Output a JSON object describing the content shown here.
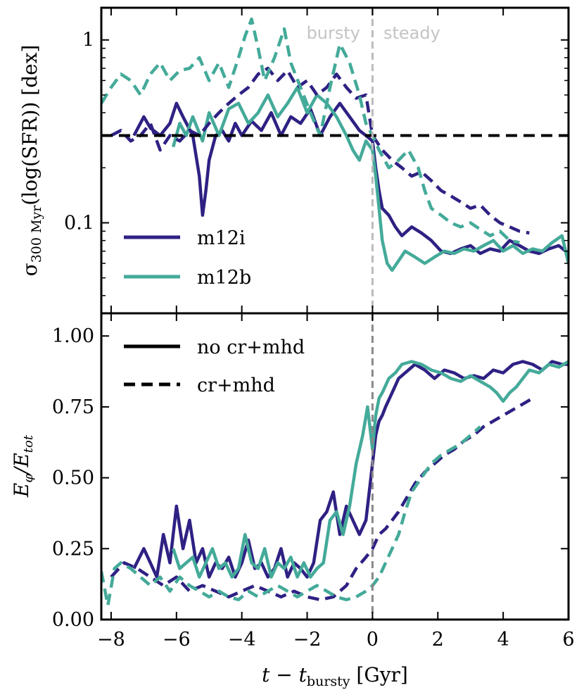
{
  "chart_data": [
    {
      "type": "line",
      "panel": "top",
      "yscale": "log",
      "ylabel_main": "σ",
      "ylabel_sub": "300 Myr",
      "ylabel_rest": "(log(SFR)) [dex]",
      "xlim": [
        -8.3,
        6
      ],
      "ylim": [
        0.032,
        1.5
      ],
      "yticks": [
        {
          "value": 0.1,
          "label": "0.1"
        },
        {
          "value": 1,
          "label": "1"
        }
      ],
      "region_labels": {
        "left": "bursty",
        "right": "steady"
      },
      "threshold": 0.3,
      "legend": [
        {
          "name": "m12i",
          "color": "#2e2183"
        },
        {
          "name": "m12b",
          "color": "#44aa99"
        }
      ],
      "series": [
        {
          "name": "m12i",
          "style": "solid",
          "color": "#2e2183",
          "x": [
            -7.3,
            -7.0,
            -6.8,
            -6.5,
            -6.2,
            -6.0,
            -5.8,
            -5.5,
            -5.3,
            -5.2,
            -5.1,
            -5.0,
            -4.8,
            -4.6,
            -4.4,
            -4.2,
            -4.0,
            -3.7,
            -3.4,
            -3.1,
            -2.8,
            -2.5,
            -2.2,
            -1.9,
            -1.6,
            -1.3,
            -1.0,
            -0.7,
            -0.4,
            -0.2,
            0.0,
            0.1,
            0.2,
            0.3,
            0.5,
            0.7,
            0.9,
            1.2,
            1.5,
            1.8,
            2.1,
            2.4,
            2.7,
            3.0,
            3.3,
            3.6,
            3.9,
            4.2,
            4.5,
            4.8,
            5.1,
            5.4,
            5.7,
            6.0
          ],
          "y": [
            0.3,
            0.38,
            0.33,
            0.3,
            0.35,
            0.45,
            0.38,
            0.3,
            0.18,
            0.11,
            0.15,
            0.22,
            0.3,
            0.32,
            0.28,
            0.35,
            0.3,
            0.36,
            0.32,
            0.4,
            0.3,
            0.38,
            0.35,
            0.42,
            0.3,
            0.38,
            0.45,
            0.38,
            0.32,
            0.3,
            0.28,
            0.2,
            0.15,
            0.12,
            0.11,
            0.095,
            0.085,
            0.095,
            0.088,
            0.08,
            0.07,
            0.068,
            0.072,
            0.075,
            0.068,
            0.072,
            0.07,
            0.08,
            0.075,
            0.07,
            0.068,
            0.072,
            0.075,
            0.068
          ]
        },
        {
          "name": "m12b",
          "style": "solid",
          "color": "#44aa99",
          "x": [
            -6.1,
            -5.9,
            -5.7,
            -5.5,
            -5.2,
            -5.0,
            -4.7,
            -4.4,
            -4.1,
            -3.8,
            -3.5,
            -3.2,
            -2.9,
            -2.6,
            -2.3,
            -2.0,
            -1.7,
            -1.4,
            -1.1,
            -0.8,
            -0.6,
            -0.4,
            -0.2,
            0.0,
            0.1,
            0.2,
            0.3,
            0.45,
            0.6,
            0.8,
            1.0,
            1.3,
            1.6,
            1.9,
            2.2,
            2.5,
            2.8,
            3.1,
            3.4,
            3.7,
            4.0,
            4.3,
            4.6,
            4.9,
            5.2,
            5.5,
            5.8,
            6.0
          ],
          "y": [
            0.26,
            0.35,
            0.3,
            0.38,
            0.28,
            0.4,
            0.3,
            0.42,
            0.45,
            0.35,
            0.4,
            0.5,
            0.38,
            0.45,
            0.55,
            0.4,
            0.5,
            0.45,
            0.38,
            0.3,
            0.25,
            0.22,
            0.28,
            0.25,
            0.18,
            0.12,
            0.08,
            0.06,
            0.055,
            0.062,
            0.07,
            0.065,
            0.06,
            0.065,
            0.07,
            0.068,
            0.072,
            0.07,
            0.075,
            0.08,
            0.07,
            0.075,
            0.068,
            0.072,
            0.07,
            0.078,
            0.085,
            0.06
          ]
        },
        {
          "name": "m12i",
          "style": "dashed",
          "color": "#2e2183",
          "x": [
            -8.0,
            -7.7,
            -7.4,
            -7.1,
            -6.8,
            -6.5,
            -6.2,
            -5.9,
            -5.6,
            -5.3,
            -5.0,
            -4.7,
            -4.4,
            -4.1,
            -3.8,
            -3.5,
            -3.2,
            -2.9,
            -2.6,
            -2.3,
            -2.0,
            -1.7,
            -1.4,
            -1.1,
            -0.8,
            -0.5,
            -0.2,
            0.0,
            0.3,
            0.6,
            0.9,
            1.2,
            1.5,
            1.8,
            2.1,
            2.4,
            2.7,
            3.0,
            3.3,
            3.6,
            3.9,
            4.2,
            4.5,
            4.8
          ],
          "y": [
            0.3,
            0.32,
            0.28,
            0.3,
            0.35,
            0.25,
            0.3,
            0.28,
            0.32,
            0.3,
            0.35,
            0.4,
            0.45,
            0.5,
            0.55,
            0.65,
            0.7,
            0.6,
            0.68,
            0.55,
            0.6,
            0.5,
            0.55,
            0.65,
            0.55,
            0.48,
            0.5,
            0.3,
            0.25,
            0.22,
            0.2,
            0.18,
            0.19,
            0.17,
            0.15,
            0.14,
            0.13,
            0.12,
            0.125,
            0.11,
            0.1,
            0.095,
            0.09,
            0.088
          ]
        },
        {
          "name": "m12b",
          "style": "dashed",
          "color": "#44aa99",
          "x": [
            -8.3,
            -8.0,
            -7.7,
            -7.4,
            -7.1,
            -6.8,
            -6.5,
            -6.2,
            -5.9,
            -5.6,
            -5.3,
            -5.0,
            -4.7,
            -4.4,
            -4.1,
            -3.9,
            -3.7,
            -3.5,
            -3.3,
            -3.0,
            -2.7,
            -2.5,
            -2.2,
            -1.9,
            -1.6,
            -1.3,
            -1.0,
            -0.7,
            -0.4,
            -0.2,
            0.0,
            0.2,
            0.5,
            0.8,
            1.1,
            1.4,
            1.6,
            1.8,
            2.1,
            2.4,
            2.7,
            3.0,
            3.3,
            3.6,
            3.9,
            4.2,
            4.5
          ],
          "y": [
            0.45,
            0.55,
            0.65,
            0.6,
            0.5,
            0.65,
            0.75,
            0.6,
            0.68,
            0.7,
            0.8,
            0.6,
            0.75,
            0.55,
            0.8,
            1.05,
            1.3,
            0.9,
            0.6,
            0.8,
            1.15,
            0.75,
            0.55,
            0.4,
            0.3,
            0.55,
            0.95,
            0.75,
            0.5,
            0.35,
            0.3,
            0.25,
            0.2,
            0.22,
            0.25,
            0.2,
            0.15,
            0.12,
            0.11,
            0.1,
            0.095,
            0.1,
            0.092,
            0.085,
            0.09,
            0.08,
            0.078
          ]
        }
      ]
    },
    {
      "type": "line",
      "panel": "bottom",
      "ylabel": "E_φ/E_tot",
      "ylabel_parts": {
        "num": "E",
        "num_sub": "φ",
        "den": "E",
        "den_sub": "tot"
      },
      "xlabel": "t − t_bursty [Gyr]",
      "xlabel_parts": {
        "t": "t",
        "minus": " − ",
        "tb": "t",
        "tb_sub": "bursty",
        "unit": " [Gyr]"
      },
      "xlim": [
        -8.3,
        6
      ],
      "ylim": [
        0,
        1.08
      ],
      "xticks": [
        {
          "value": -8,
          "label": "−8"
        },
        {
          "value": -6,
          "label": "−6"
        },
        {
          "value": -4,
          "label": "−4"
        },
        {
          "value": -2,
          "label": "−2"
        },
        {
          "value": 0,
          "label": "0"
        },
        {
          "value": 2,
          "label": "2"
        },
        {
          "value": 4,
          "label": "4"
        },
        {
          "value": 6,
          "label": "6"
        }
      ],
      "yticks": [
        {
          "value": 0,
          "label": "0.00"
        },
        {
          "value": 0.25,
          "label": "0.25"
        },
        {
          "value": 0.5,
          "label": "0.50"
        },
        {
          "value": 0.75,
          "label": "0.75"
        },
        {
          "value": 1.0,
          "label": "1.00"
        }
      ],
      "legend": [
        {
          "name": "no cr+mhd",
          "style": "solid"
        },
        {
          "name": "cr+mhd",
          "style": "dashed"
        }
      ],
      "series": [
        {
          "name": "m12i",
          "style": "solid",
          "color": "#2e2183",
          "x": [
            -7.3,
            -7.0,
            -6.8,
            -6.6,
            -6.4,
            -6.2,
            -6.0,
            -5.8,
            -5.6,
            -5.4,
            -5.2,
            -5.0,
            -4.8,
            -4.6,
            -4.4,
            -4.2,
            -4.0,
            -3.8,
            -3.6,
            -3.4,
            -3.2,
            -3.0,
            -2.8,
            -2.6,
            -2.4,
            -2.2,
            -2.0,
            -1.8,
            -1.6,
            -1.4,
            -1.2,
            -1.0,
            -0.8,
            -0.6,
            -0.4,
            -0.2,
            0.0,
            0.1,
            0.2,
            0.3,
            0.4,
            0.6,
            0.8,
            1.0,
            1.3,
            1.6,
            1.9,
            2.2,
            2.5,
            2.8,
            3.1,
            3.4,
            3.7,
            4.0,
            4.3,
            4.6,
            4.9,
            5.2,
            5.5,
            5.8,
            6.0
          ],
          "y": [
            0.18,
            0.25,
            0.2,
            0.15,
            0.3,
            0.2,
            0.4,
            0.25,
            0.35,
            0.2,
            0.25,
            0.15,
            0.2,
            0.18,
            0.22,
            0.15,
            0.2,
            0.28,
            0.18,
            0.2,
            0.15,
            0.18,
            0.25,
            0.15,
            0.2,
            0.18,
            0.15,
            0.2,
            0.35,
            0.38,
            0.45,
            0.3,
            0.4,
            0.35,
            0.3,
            0.35,
            0.55,
            0.65,
            0.7,
            0.72,
            0.75,
            0.8,
            0.85,
            0.87,
            0.9,
            0.88,
            0.85,
            0.88,
            0.87,
            0.85,
            0.86,
            0.85,
            0.88,
            0.87,
            0.9,
            0.91,
            0.9,
            0.88,
            0.91,
            0.9,
            0.9
          ]
        },
        {
          "name": "m12b",
          "style": "solid",
          "color": "#44aa99",
          "x": [
            -6.1,
            -5.9,
            -5.7,
            -5.5,
            -5.3,
            -5.1,
            -4.9,
            -4.7,
            -4.5,
            -4.3,
            -4.1,
            -3.9,
            -3.7,
            -3.5,
            -3.3,
            -3.1,
            -2.9,
            -2.7,
            -2.5,
            -2.3,
            -2.1,
            -1.9,
            -1.7,
            -1.5,
            -1.3,
            -1.1,
            -0.9,
            -0.7,
            -0.5,
            -0.3,
            -0.15,
            0.0,
            0.1,
            0.2,
            0.3,
            0.5,
            0.7,
            0.9,
            1.2,
            1.5,
            1.8,
            2.1,
            2.4,
            2.7,
            3.0,
            3.3,
            3.6,
            3.8,
            4.0,
            4.2,
            4.4,
            4.6,
            4.8,
            5.1,
            5.4,
            5.7,
            6.0
          ],
          "y": [
            0.25,
            0.18,
            0.2,
            0.22,
            0.15,
            0.2,
            0.25,
            0.18,
            0.2,
            0.15,
            0.18,
            0.3,
            0.2,
            0.18,
            0.25,
            0.15,
            0.2,
            0.18,
            0.22,
            0.15,
            0.2,
            0.15,
            0.18,
            0.2,
            0.35,
            0.38,
            0.3,
            0.4,
            0.55,
            0.65,
            0.75,
            0.6,
            0.72,
            0.78,
            0.8,
            0.85,
            0.87,
            0.9,
            0.91,
            0.9,
            0.88,
            0.87,
            0.85,
            0.84,
            0.86,
            0.84,
            0.82,
            0.8,
            0.77,
            0.8,
            0.82,
            0.85,
            0.88,
            0.87,
            0.9,
            0.89,
            0.91
          ]
        },
        {
          "name": "m12i",
          "style": "dashed",
          "color": "#2e2183",
          "x": [
            -8.0,
            -7.6,
            -7.2,
            -6.8,
            -6.4,
            -6.0,
            -5.6,
            -5.2,
            -4.8,
            -4.4,
            -4.0,
            -3.6,
            -3.2,
            -2.8,
            -2.4,
            -2.0,
            -1.6,
            -1.2,
            -0.8,
            -0.5,
            -0.2,
            0.0,
            0.2,
            0.4,
            0.6,
            0.8,
            1.0,
            1.3,
            1.6,
            1.9,
            2.2,
            2.5,
            2.8,
            3.1,
            3.4,
            3.7,
            4.0,
            4.3,
            4.6,
            4.9
          ],
          "y": [
            0.15,
            0.2,
            0.18,
            0.15,
            0.12,
            0.15,
            0.1,
            0.12,
            0.1,
            0.08,
            0.1,
            0.12,
            0.1,
            0.08,
            0.1,
            0.08,
            0.07,
            0.08,
            0.12,
            0.18,
            0.22,
            0.25,
            0.3,
            0.32,
            0.35,
            0.38,
            0.42,
            0.48,
            0.52,
            0.55,
            0.58,
            0.6,
            0.63,
            0.65,
            0.68,
            0.7,
            0.72,
            0.74,
            0.76,
            0.78
          ]
        },
        {
          "name": "m12b",
          "style": "dashed",
          "color": "#44aa99",
          "x": [
            -8.3,
            -8.1,
            -7.9,
            -7.7,
            -7.4,
            -7.1,
            -6.8,
            -6.5,
            -6.2,
            -5.9,
            -5.6,
            -5.3,
            -5.0,
            -4.7,
            -4.4,
            -4.1,
            -3.8,
            -3.5,
            -3.2,
            -2.9,
            -2.6,
            -2.3,
            -2.0,
            -1.7,
            -1.4,
            -1.1,
            -0.8,
            -0.5,
            -0.2,
            0.0,
            0.2,
            0.4,
            0.6,
            0.8,
            1.0,
            1.2,
            1.5,
            1.8,
            2.1,
            2.4,
            2.7,
            3.0,
            3.3
          ],
          "y": [
            0.17,
            0.05,
            0.18,
            0.2,
            0.18,
            0.15,
            0.12,
            0.15,
            0.1,
            0.15,
            0.12,
            0.1,
            0.08,
            0.1,
            0.08,
            0.07,
            0.1,
            0.08,
            0.1,
            0.12,
            0.1,
            0.08,
            0.1,
            0.12,
            0.1,
            0.08,
            0.07,
            0.08,
            0.1,
            0.12,
            0.15,
            0.2,
            0.25,
            0.3,
            0.38,
            0.45,
            0.5,
            0.55,
            0.58,
            0.6,
            0.62,
            0.65,
            0.68
          ]
        }
      ]
    }
  ]
}
